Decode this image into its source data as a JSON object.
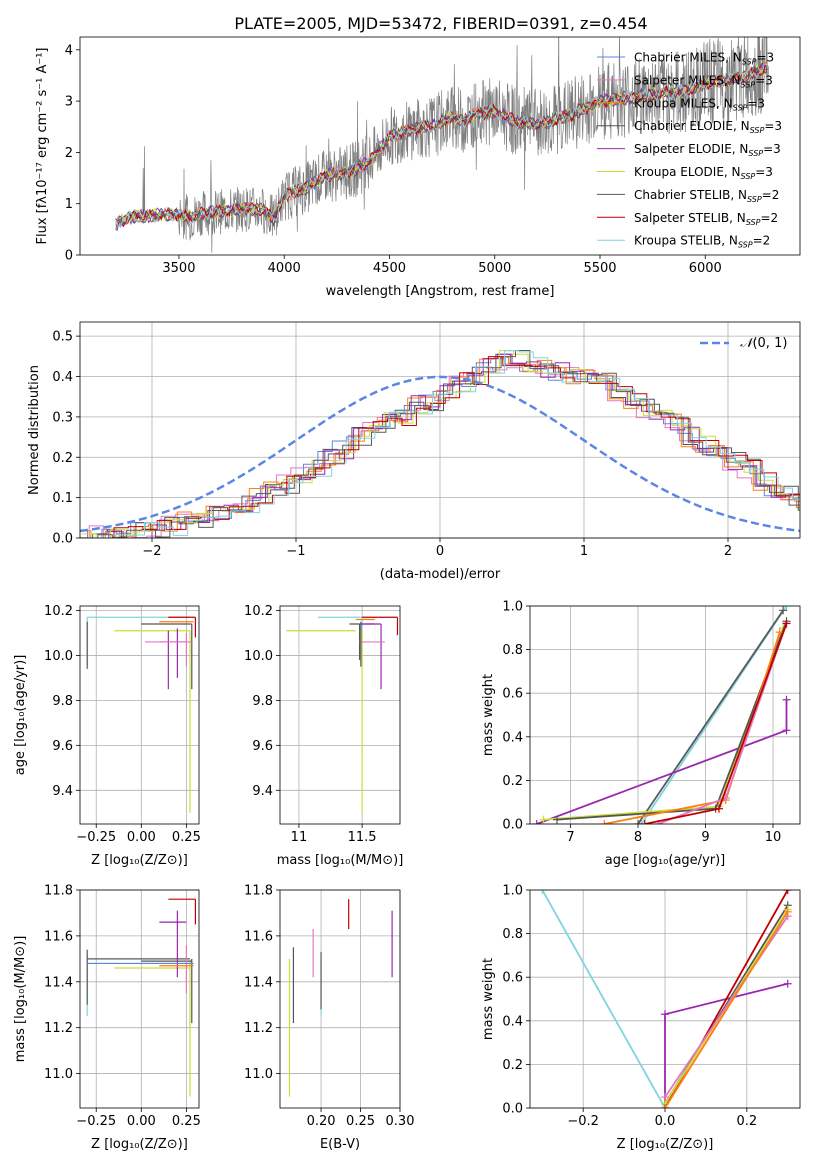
{
  "figure": {
    "title": "PLATE=2005, MJD=53472, FIBERID=0391, z=0.454"
  },
  "colors": {
    "chabrier_miles": "#5b86e5",
    "salpeter_miles": "#e377c2",
    "kroupa_miles": "#ff7f0e",
    "chabrier_elodie": "#555555",
    "salpeter_elodie": "#9b27b0",
    "kroupa_elodie": "#cddc39",
    "chabrier_stelib": "#5a5a5a",
    "salpeter_stelib": "#c00000",
    "kroupa_stelib": "#80d4e0",
    "data": "#7f7f7f",
    "normal": "#5b86e5"
  },
  "chart_data": [
    {
      "id": "spectrum",
      "type": "line",
      "title": "PLATE=2005, MJD=53472, FIBERID=0391, z=0.454",
      "xlabel": "wavelength [Angstrom, rest frame]",
      "ylabel": "Flux [fλ10⁻¹⁷ erg cm⁻² s⁻¹ A⁻¹]",
      "xlim": [
        3030,
        6450
      ],
      "ylim": [
        0,
        4.25
      ],
      "xticks": [
        3500,
        4000,
        4500,
        5000,
        5500,
        6000
      ],
      "yticks": [
        0,
        1,
        2,
        3,
        4
      ],
      "grid": false,
      "legend_position": "upper-right",
      "series": [
        {
          "name": "Chabrier MILES, N$_{SSP}$=3",
          "color_key": "chabrier_miles"
        },
        {
          "name": "Salpeter MILES, N$_{SSP}$=3",
          "color_key": "salpeter_miles"
        },
        {
          "name": "Kroupa MILES, N$_{SSP}$=3",
          "color_key": "kroupa_miles"
        },
        {
          "name": "Chabrier ELODIE, N$_{SSP}$=3",
          "color_key": "chabrier_elodie"
        },
        {
          "name": "Salpeter ELODIE, N$_{SSP}$=3",
          "color_key": "salpeter_elodie"
        },
        {
          "name": "Kroupa ELODIE, N$_{SSP}$=3",
          "color_key": "kroupa_elodie"
        },
        {
          "name": "Chabrier STELIB, N$_{SSP}$=2",
          "color_key": "chabrier_stelib"
        },
        {
          "name": "Salpeter STELIB, N$_{SSP}$=2",
          "color_key": "salpeter_stelib"
        },
        {
          "name": "Kroupa STELIB, N$_{SSP}$=2",
          "color_key": "kroupa_stelib"
        }
      ],
      "model_continuum": [
        [
          3200,
          0.6
        ],
        [
          3250,
          0.72
        ],
        [
          3300,
          0.75
        ],
        [
          3400,
          0.78
        ],
        [
          3500,
          0.8
        ],
        [
          3550,
          0.72
        ],
        [
          3600,
          0.82
        ],
        [
          3700,
          0.85
        ],
        [
          3800,
          0.9
        ],
        [
          3900,
          0.88
        ],
        [
          3950,
          0.7
        ],
        [
          4000,
          1.15
        ],
        [
          4100,
          1.3
        ],
        [
          4200,
          1.55
        ],
        [
          4300,
          1.6
        ],
        [
          4400,
          1.8
        ],
        [
          4500,
          2.3
        ],
        [
          4600,
          2.45
        ],
        [
          4700,
          2.5
        ],
        [
          4800,
          2.7
        ],
        [
          4850,
          2.6
        ],
        [
          4900,
          2.75
        ],
        [
          5000,
          2.8
        ],
        [
          5100,
          2.6
        ],
        [
          5200,
          2.55
        ],
        [
          5300,
          2.65
        ],
        [
          5400,
          2.8
        ],
        [
          5500,
          3.0
        ],
        [
          5600,
          3.05
        ],
        [
          5700,
          3.1
        ],
        [
          5800,
          3.15
        ],
        [
          5900,
          3.2
        ],
        [
          6000,
          3.35
        ],
        [
          6100,
          3.4
        ],
        [
          6200,
          3.5
        ],
        [
          6300,
          3.65
        ]
      ],
      "data_start": 3200,
      "data_end": 6300
    },
    {
      "id": "residuals",
      "type": "bar",
      "xlabel": "(data-model)/error",
      "ylabel": "Normed distribution",
      "xlim": [
        -2.5,
        2.5
      ],
      "ylim": [
        0,
        0.535
      ],
      "xticks": [
        -2,
        -1,
        0,
        1,
        2
      ],
      "yticks": [
        0.0,
        0.1,
        0.2,
        0.3,
        0.4,
        0.5
      ],
      "grid": true,
      "legend_position": "upper-right",
      "legend": [
        "$\\mathcal{N}(0, 1)$"
      ],
      "bin_width": 0.1,
      "bin_start": -2.5,
      "mean_counts": [
        0.0,
        0.005,
        0.01,
        0.012,
        0.018,
        0.025,
        0.03,
        0.04,
        0.045,
        0.055,
        0.065,
        0.08,
        0.1,
        0.12,
        0.135,
        0.15,
        0.175,
        0.2,
        0.22,
        0.25,
        0.27,
        0.29,
        0.3,
        0.33,
        0.34,
        0.36,
        0.385,
        0.4,
        0.43,
        0.44,
        0.44,
        0.43,
        0.42,
        0.41,
        0.4,
        0.395,
        0.385,
        0.36,
        0.34,
        0.32,
        0.3,
        0.285,
        0.25,
        0.23,
        0.215,
        0.19,
        0.17,
        0.14,
        0.12,
        0.105,
        0.09,
        0.08,
        0.07,
        0.06,
        0.05,
        0.04,
        0.035,
        0.03,
        0.025,
        0.02
      ]
    },
    {
      "id": "age_vs_Z",
      "type": "scatter",
      "xlabel": "Z [log₁₀(Z/Z⊙)]",
      "ylabel": "age  [log₁₀(age/yr)]",
      "xlim": [
        -0.34,
        0.32
      ],
      "ylim": [
        9.25,
        10.22
      ],
      "xticks": [
        -0.25,
        0.0,
        0.25
      ],
      "xticklabels": [
        "−0.25",
        "0.00",
        "0.25"
      ],
      "yticks": [
        9.4,
        9.6,
        9.8,
        10.0,
        10.2
      ],
      "grid": true
    },
    {
      "id": "age_vs_mass",
      "type": "scatter",
      "xlabel": "mass [log₁₀(M/M⊙)]",
      "xlim": [
        10.85,
        11.8
      ],
      "ylim": [
        9.25,
        10.22
      ],
      "xticks": [
        11.0,
        11.5
      ],
      "yticks": [
        9.4,
        9.6,
        9.8,
        10.0,
        10.2
      ],
      "grid": true
    },
    {
      "id": "massweight_vs_age",
      "type": "line",
      "xlabel": "age  [log₁₀(age/yr)]",
      "ylabel": "mass weight",
      "xlim": [
        6.4,
        10.4
      ],
      "ylim": [
        0.0,
        1.0
      ],
      "xticks": [
        7,
        8,
        9,
        10
      ],
      "yticks": [
        0.0,
        0.2,
        0.4,
        0.6,
        0.8,
        1.0
      ],
      "grid": true,
      "series": [
        {
          "color_key": "kroupa_stelib",
          "points": [
            [
              8.05,
              0.0
            ],
            [
              10.2,
              1.0
            ]
          ]
        },
        {
          "color_key": "chabrier_stelib",
          "points": [
            [
              8.0,
              0.0
            ],
            [
              10.15,
              0.98
            ]
          ]
        },
        {
          "color_key": "salpeter_elodie",
          "points": [
            [
              6.5,
              0.0
            ],
            [
              10.2,
              0.43
            ],
            [
              10.2,
              0.57
            ]
          ]
        },
        {
          "color_key": "kroupa_elodie",
          "points": [
            [
              6.6,
              0.02
            ],
            [
              9.2,
              0.08
            ],
            [
              10.15,
              0.9
            ]
          ]
        },
        {
          "color_key": "chabrier_elodie",
          "points": [
            [
              6.8,
              0.02
            ],
            [
              9.15,
              0.07
            ],
            [
              10.2,
              0.93
            ]
          ]
        },
        {
          "color_key": "kroupa_miles",
          "points": [
            [
              7.5,
              0.0
            ],
            [
              9.3,
              0.11
            ],
            [
              10.1,
              0.88
            ]
          ]
        },
        {
          "color_key": "salpeter_miles",
          "points": [
            [
              8.3,
              0.0
            ],
            [
              9.3,
              0.12
            ],
            [
              10.2,
              0.92
            ]
          ]
        },
        {
          "color_key": "salpeter_stelib",
          "points": [
            [
              8.1,
              0.0
            ],
            [
              9.2,
              0.07
            ],
            [
              10.2,
              0.92
            ]
          ]
        }
      ]
    },
    {
      "id": "mass_vs_Z",
      "type": "scatter",
      "xlabel": "Z [log₁₀(Z/Z⊙)]",
      "ylabel": "mass [log₁₀(M/M⊙)]",
      "xlim": [
        -0.34,
        0.32
      ],
      "ylim": [
        10.85,
        11.8
      ],
      "xticks": [
        -0.25,
        0.0,
        0.25
      ],
      "xticklabels": [
        "−0.25",
        "0.00",
        "0.25"
      ],
      "yticks": [
        11.0,
        11.2,
        11.4,
        11.6,
        11.8
      ],
      "grid": true
    },
    {
      "id": "mass_vs_ebv",
      "type": "scatter",
      "xlabel": "E(B-V)",
      "xlim": [
        0.148,
        0.3
      ],
      "ylim": [
        10.85,
        11.8
      ],
      "xticks": [
        0.2,
        0.25,
        0.3
      ],
      "xticklabels": [
        "0.20",
        "0.25",
        "0.30"
      ],
      "yticks": [
        11.0,
        11.2,
        11.4,
        11.6,
        11.8
      ],
      "grid": true
    },
    {
      "id": "massweight_vs_Z",
      "type": "line",
      "xlabel": "Z [log₁₀(Z/Z⊙)]",
      "ylabel": "mass weight",
      "xlim": [
        -0.33,
        0.33
      ],
      "ylim": [
        0.0,
        1.0
      ],
      "xticks": [
        -0.2,
        0.0,
        0.2
      ],
      "xticklabels": [
        "−0.2",
        "0.0",
        "0.2"
      ],
      "yticks": [
        0.0,
        0.2,
        0.4,
        0.6,
        0.8,
        1.0
      ],
      "grid": true,
      "series": [
        {
          "color_key": "kroupa_stelib",
          "points": [
            [
              -0.3,
              1.0
            ],
            [
              0.0,
              0.0
            ]
          ]
        },
        {
          "color_key": "salpeter_elodie",
          "points": [
            [
              0.0,
              0.0
            ],
            [
              0.0,
              0.43
            ],
            [
              0.3,
              0.57
            ]
          ]
        },
        {
          "color_key": "salpeter_stelib",
          "points": [
            [
              0.0,
              0.0
            ],
            [
              0.3,
              1.0
            ]
          ]
        },
        {
          "color_key": "chabrier_elodie",
          "points": [
            [
              0.0,
              0.02
            ],
            [
              0.3,
              0.93
            ]
          ]
        },
        {
          "color_key": "kroupa_elodie",
          "points": [
            [
              0.0,
              0.02
            ],
            [
              0.3,
              0.91
            ]
          ]
        },
        {
          "color_key": "salpeter_miles",
          "points": [
            [
              0.0,
              0.05
            ],
            [
              0.3,
              0.88
            ]
          ]
        },
        {
          "color_key": "kroupa_miles",
          "points": [
            [
              0.0,
              0.0
            ],
            [
              0.3,
              0.9
            ]
          ]
        }
      ]
    }
  ]
}
